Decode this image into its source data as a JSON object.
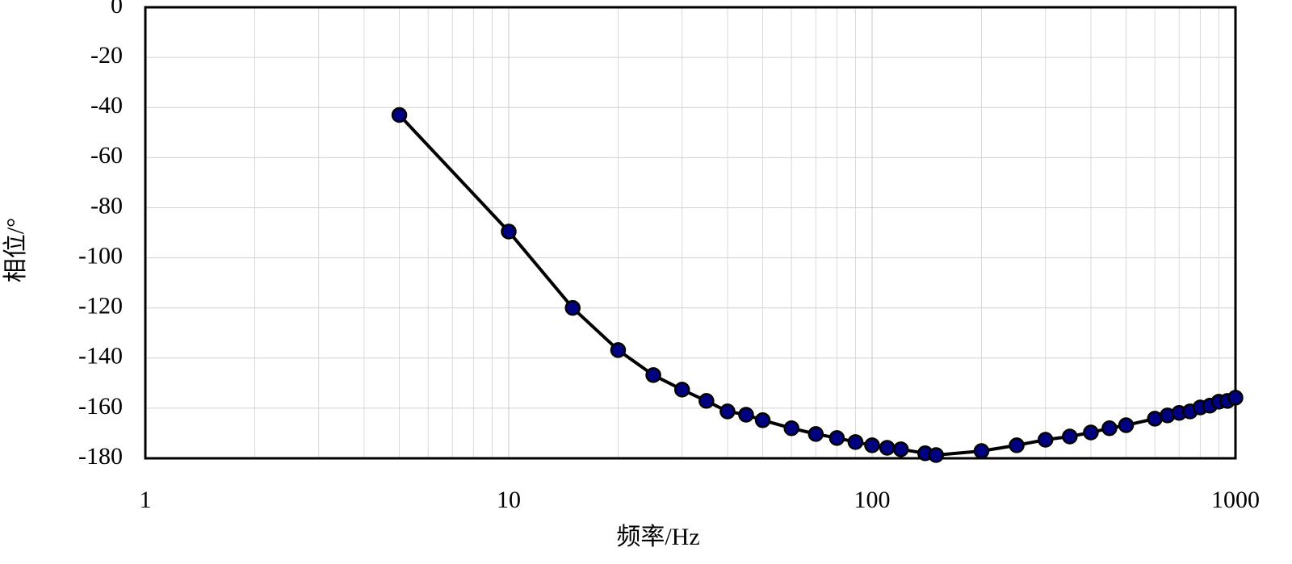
{
  "chart_data": {
    "type": "line",
    "xlabel": "频率/Hz",
    "ylabel": "相位/°",
    "x": [
      5,
      10,
      15,
      20,
      25,
      30,
      35,
      40,
      45,
      50,
      60,
      70,
      80,
      90,
      100,
      110,
      120,
      140,
      150,
      200,
      250,
      300,
      350,
      400,
      450,
      500,
      600,
      650,
      700,
      750,
      800,
      850,
      900,
      950,
      1000
    ],
    "series": [
      {
        "color": "#000000",
        "marker_color": "#000080",
        "values": [
          -43,
          -89.5,
          -120,
          -136.8,
          -146.8,
          -152.6,
          -157.1,
          -161.3,
          -162.6,
          -164.8,
          -168,
          -170.3,
          -171.9,
          -173.5,
          -174.8,
          -175.8,
          -176.4,
          -178,
          -178.7,
          -177.1,
          -174.8,
          -172.6,
          -171.3,
          -169.7,
          -168,
          -166.8,
          -164.2,
          -162.9,
          -161.9,
          -161.3,
          -159.7,
          -159,
          -157.4,
          -157.1,
          -155.8
        ]
      }
    ],
    "xscale": "log",
    "xlim": [
      1,
      1000
    ],
    "xticks": [
      1,
      10,
      100,
      1000
    ],
    "xminorticks": [
      2,
      3,
      4,
      5,
      6,
      7,
      8,
      9,
      20,
      30,
      40,
      50,
      60,
      70,
      80,
      90,
      200,
      300,
      400,
      500,
      600,
      700,
      800,
      900
    ],
    "ylim": [
      -180,
      0
    ],
    "yticks": [
      -180,
      -160,
      -140,
      -120,
      -100,
      -80,
      -60,
      -40,
      -20,
      0
    ],
    "grid": true
  }
}
